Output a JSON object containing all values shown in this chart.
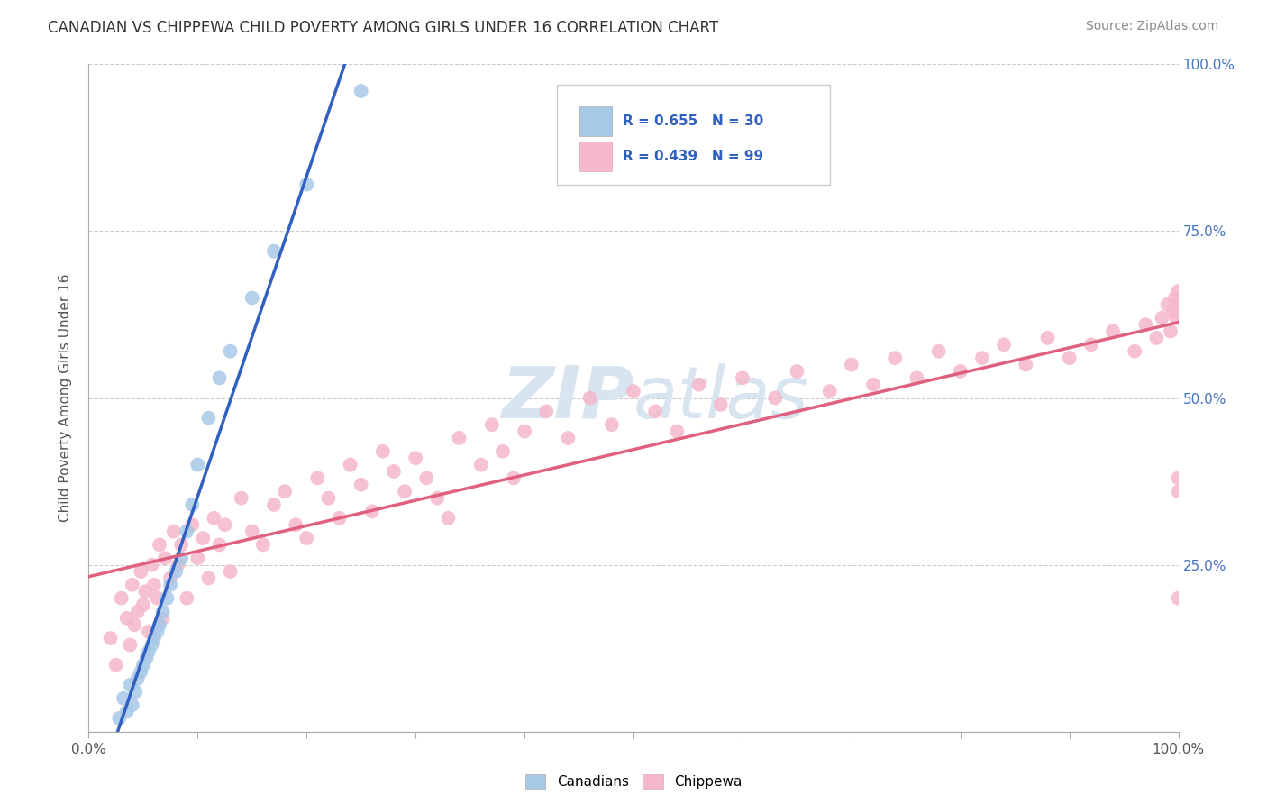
{
  "title": "CANADIAN VS CHIPPEWA CHILD POVERTY AMONG GIRLS UNDER 16 CORRELATION CHART",
  "source": "Source: ZipAtlas.com",
  "ylabel": "Child Poverty Among Girls Under 16",
  "r_canadian": 0.655,
  "n_canadian": 30,
  "r_chippewa": 0.439,
  "n_chippewa": 99,
  "color_canadian": "#a8c8e8",
  "color_chippewa": "#f5b8cc",
  "line_color_canadian": "#3060c0",
  "line_color_chippewa": "#e06080",
  "background_color": "#ffffff",
  "watermark_color": "#d8e4f0",
  "xlim": [
    0.0,
    1.0
  ],
  "ylim": [
    0.0,
    1.0
  ],
  "canadian_x": [
    0.028,
    0.032,
    0.035,
    0.038,
    0.04,
    0.043,
    0.045,
    0.048,
    0.05,
    0.053,
    0.055,
    0.058,
    0.06,
    0.063,
    0.065,
    0.068,
    0.072,
    0.075,
    0.08,
    0.085,
    0.09,
    0.095,
    0.1,
    0.11,
    0.12,
    0.13,
    0.15,
    0.17,
    0.2,
    0.25
  ],
  "canadian_y": [
    0.02,
    0.05,
    0.03,
    0.07,
    0.04,
    0.06,
    0.08,
    0.09,
    0.1,
    0.11,
    0.12,
    0.13,
    0.14,
    0.15,
    0.16,
    0.18,
    0.2,
    0.22,
    0.24,
    0.26,
    0.3,
    0.34,
    0.4,
    0.47,
    0.53,
    0.57,
    0.65,
    0.72,
    0.82,
    0.96
  ],
  "chippewa_x": [
    0.02,
    0.025,
    0.03,
    0.035,
    0.038,
    0.04,
    0.042,
    0.045,
    0.048,
    0.05,
    0.052,
    0.055,
    0.058,
    0.06,
    0.063,
    0.065,
    0.068,
    0.07,
    0.075,
    0.078,
    0.082,
    0.085,
    0.09,
    0.095,
    0.1,
    0.105,
    0.11,
    0.115,
    0.12,
    0.125,
    0.13,
    0.14,
    0.15,
    0.16,
    0.17,
    0.18,
    0.19,
    0.2,
    0.21,
    0.22,
    0.23,
    0.24,
    0.25,
    0.26,
    0.27,
    0.28,
    0.29,
    0.3,
    0.31,
    0.32,
    0.33,
    0.34,
    0.36,
    0.37,
    0.38,
    0.39,
    0.4,
    0.42,
    0.44,
    0.46,
    0.48,
    0.5,
    0.52,
    0.54,
    0.56,
    0.58,
    0.6,
    0.63,
    0.65,
    0.68,
    0.7,
    0.72,
    0.74,
    0.76,
    0.78,
    0.8,
    0.82,
    0.84,
    0.86,
    0.88,
    0.9,
    0.92,
    0.94,
    0.96,
    0.97,
    0.98,
    0.985,
    0.99,
    0.993,
    0.995,
    0.997,
    0.998,
    0.999,
    1.0,
    1.0,
    1.0,
    1.0,
    1.0,
    1.0
  ],
  "chippewa_y": [
    0.14,
    0.1,
    0.2,
    0.17,
    0.13,
    0.22,
    0.16,
    0.18,
    0.24,
    0.19,
    0.21,
    0.15,
    0.25,
    0.22,
    0.2,
    0.28,
    0.17,
    0.26,
    0.23,
    0.3,
    0.25,
    0.28,
    0.2,
    0.31,
    0.26,
    0.29,
    0.23,
    0.32,
    0.28,
    0.31,
    0.24,
    0.35,
    0.3,
    0.28,
    0.34,
    0.36,
    0.31,
    0.29,
    0.38,
    0.35,
    0.32,
    0.4,
    0.37,
    0.33,
    0.42,
    0.39,
    0.36,
    0.41,
    0.38,
    0.35,
    0.32,
    0.44,
    0.4,
    0.46,
    0.42,
    0.38,
    0.45,
    0.48,
    0.44,
    0.5,
    0.46,
    0.51,
    0.48,
    0.45,
    0.52,
    0.49,
    0.53,
    0.5,
    0.54,
    0.51,
    0.55,
    0.52,
    0.56,
    0.53,
    0.57,
    0.54,
    0.56,
    0.58,
    0.55,
    0.59,
    0.56,
    0.58,
    0.6,
    0.57,
    0.61,
    0.59,
    0.62,
    0.64,
    0.6,
    0.63,
    0.65,
    0.62,
    0.64,
    0.66,
    0.63,
    0.36,
    0.2,
    0.38,
    0.64
  ]
}
